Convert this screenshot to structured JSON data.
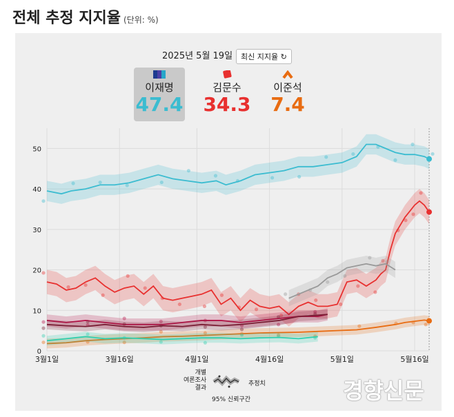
{
  "header": {
    "title": "전체 추정 지지율",
    "unit": "(단위: %)"
  },
  "panel": {
    "date": "2025년 5월 19일",
    "refresh_label": "최신 지지율 ↻"
  },
  "candidates": [
    {
      "name": "이재명",
      "value": "47.4",
      "color": "#3bbcd0",
      "selected": true,
      "icon": "party-flag-icon"
    },
    {
      "name": "김문수",
      "value": "34.3",
      "color": "#e8302f",
      "selected": false,
      "icon": "party-square-icon"
    },
    {
      "name": "이준석",
      "value": "7.4",
      "color": "#e86c12",
      "selected": false,
      "icon": "party-chevron-icon"
    }
  ],
  "legend": {
    "individual": "개별\n여론조사\n결과",
    "estimate": "추정치",
    "interval": "95% 신뢰구간"
  },
  "watermark": "경향신문",
  "chart_data": {
    "type": "line",
    "x_unit": "day index from 3월1일",
    "xticks": [
      {
        "x": 0,
        "label": "3월1일"
      },
      {
        "x": 15,
        "label": "3월16일"
      },
      {
        "x": 31,
        "label": "4월1일"
      },
      {
        "x": 46,
        "label": "4월16일"
      },
      {
        "x": 61,
        "label": "5월1일"
      },
      {
        "x": 76,
        "label": "5월16일"
      }
    ],
    "yticks": [
      0,
      10,
      20,
      30,
      40,
      50
    ],
    "xlim": [
      0,
      79
    ],
    "ylim": [
      0,
      55
    ],
    "grid": true,
    "series": [
      {
        "name": "이재명",
        "color": "#3bbcd0",
        "band": 2.5,
        "x": [
          0,
          3,
          5,
          8,
          11,
          14,
          17,
          20,
          23,
          26,
          29,
          32,
          35,
          37,
          40,
          43,
          46,
          49,
          52,
          55,
          58,
          61,
          64,
          66,
          68,
          70,
          72,
          74,
          76,
          78,
          79
        ],
        "y": [
          39.5,
          38.8,
          39.5,
          40,
          41,
          41,
          41.5,
          42.5,
          43.5,
          42.5,
          42,
          41.5,
          42,
          41,
          42,
          43.5,
          44,
          44.5,
          45.5,
          45.5,
          46,
          46.5,
          48,
          51,
          51,
          50,
          49,
          48.5,
          48.5,
          48,
          47.4
        ]
      },
      {
        "name": "김문수",
        "color": "#e8302f",
        "band": 3,
        "x": [
          0,
          2,
          4,
          6,
          8,
          10,
          12,
          14,
          16,
          18,
          20,
          22,
          24,
          26,
          28,
          30,
          32,
          34,
          36,
          38,
          40,
          42,
          44,
          46,
          48,
          50,
          52,
          54,
          56,
          58,
          60,
          62,
          64,
          66,
          68,
          69,
          70,
          71,
          72,
          73,
          74,
          75,
          76,
          77,
          78,
          79
        ],
        "y": [
          17,
          16.5,
          15,
          15.5,
          17,
          18,
          16,
          14.5,
          15.5,
          16,
          14,
          16,
          13,
          12.5,
          13,
          13.5,
          14,
          15,
          11.5,
          13,
          10,
          12.5,
          11,
          10.5,
          11,
          9,
          11,
          12,
          11,
          11,
          11.5,
          17,
          17.5,
          16,
          17.5,
          19,
          20,
          25,
          29,
          31,
          33,
          34.5,
          36,
          37,
          36,
          34.3
        ]
      },
      {
        "name": "이준석",
        "color": "#e86c12",
        "band": 1.2,
        "x": [
          0,
          4,
          8,
          12,
          16,
          20,
          24,
          28,
          32,
          36,
          40,
          44,
          48,
          52,
          56,
          60,
          64,
          68,
          72,
          74,
          76,
          78,
          79
        ],
        "y": [
          1.8,
          2,
          2.5,
          2.8,
          3,
          3.2,
          3.5,
          3.6,
          3.8,
          4,
          4.2,
          4.4,
          4.5,
          4.6,
          4.8,
          5,
          5.2,
          5.8,
          6.5,
          7,
          7.3,
          7.6,
          7.4
        ]
      },
      {
        "name": "",
        "color": "#b8144a",
        "band": 1.5,
        "x": [
          0,
          4,
          8,
          12,
          16,
          20,
          24,
          28,
          32,
          36,
          40,
          44,
          48,
          52,
          56,
          58
        ],
        "y": [
          7.5,
          7,
          7.5,
          7,
          6.5,
          6.5,
          6.5,
          7,
          7.5,
          7.5,
          7,
          7.5,
          8,
          8.5,
          8.5,
          9
        ]
      },
      {
        "name": "",
        "color": "#7a1f35",
        "band": 1.2,
        "x": [
          0,
          4,
          8,
          12,
          16,
          20,
          24,
          28,
          32,
          36,
          40,
          44,
          48,
          52,
          56,
          58
        ],
        "y": [
          6.5,
          6.2,
          6,
          6.5,
          6,
          5.8,
          6.2,
          6,
          6.5,
          6.2,
          6.5,
          7,
          7.5,
          8.5,
          8.8,
          9
        ]
      },
      {
        "name": "",
        "color": "#2fd0b0",
        "band": 1.2,
        "x": [
          0,
          4,
          8,
          12,
          16,
          20,
          24,
          28,
          32,
          36,
          40,
          44,
          48,
          52,
          56
        ],
        "y": [
          2.5,
          3,
          3.5,
          3,
          3.2,
          3,
          2.8,
          3,
          3.2,
          3.2,
          3,
          3.2,
          3.3,
          3,
          3.5
        ]
      },
      {
        "name": "",
        "color": "#999999",
        "band": 2,
        "x": [
          50,
          52,
          54,
          56,
          58,
          60,
          62,
          64,
          66,
          68,
          70,
          72
        ],
        "y": [
          13,
          14,
          15,
          16,
          18,
          19,
          20.5,
          21,
          21.5,
          21,
          21.5,
          20
        ]
      }
    ],
    "end_markers": [
      {
        "series": 0
      },
      {
        "series": 1
      },
      {
        "series": 2
      }
    ]
  }
}
